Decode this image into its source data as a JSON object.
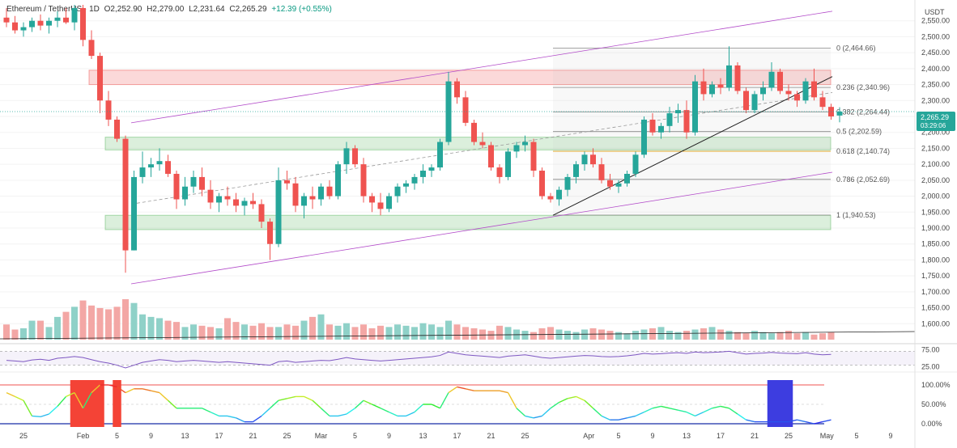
{
  "header": {
    "symbol": "Ethereum / TetherUS · 1D",
    "open": "O2,252.90",
    "high": "H2,279.00",
    "low": "L2,231.64",
    "close": "C2,265.29",
    "change": "+12.39 (+0.55%)"
  },
  "price_axis": {
    "currency": "USDT",
    "last_price": "2,265.29",
    "countdown": "03:29:06"
  },
  "colors": {
    "up": "#26a69a",
    "down": "#ef5350",
    "up_vol": "#8fd1c8",
    "down_vol": "#f3a7a5",
    "channel": "#b24ac9",
    "fib_label": "#555555",
    "fib_gold": "#e0a21a"
  },
  "chart_data": [
    {
      "type": "candlestick",
      "title": "Ethereum / TetherUS · 1D",
      "x": [
        "Jan 23",
        "Jan 24",
        "Jan 25",
        "Jan 26",
        "Jan 27",
        "Jan 28",
        "Jan 29",
        "Jan 30",
        "Jan 31",
        "Feb 1",
        "Feb 2",
        "Feb 3",
        "Feb 4",
        "Feb 5",
        "Feb 6",
        "Feb 7",
        "Feb 8",
        "Feb 9",
        "Feb 10",
        "Feb 11",
        "Feb 12",
        "Feb 13",
        "Feb 14",
        "Feb 15",
        "Feb 16",
        "Feb 17",
        "Feb 18",
        "Feb 19",
        "Feb 20",
        "Feb 21",
        "Feb 22",
        "Feb 23",
        "Feb 24",
        "Feb 25",
        "Feb 26",
        "Feb 27",
        "Feb 28",
        "Mar 1",
        "Mar 2",
        "Mar 3",
        "Mar 4",
        "Mar 5",
        "Mar 6",
        "Mar 7",
        "Mar 8",
        "Mar 9",
        "Mar 10",
        "Mar 11",
        "Mar 12",
        "Mar 13",
        "Mar 14",
        "Mar 15",
        "Mar 16",
        "Mar 17",
        "Mar 18",
        "Mar 19",
        "Mar 20",
        "Mar 21",
        "Mar 22",
        "Mar 23",
        "Mar 24",
        "Mar 25",
        "Mar 26",
        "Mar 27",
        "Mar 28",
        "Mar 29",
        "Mar 30",
        "Mar 31",
        "Apr 1",
        "Apr 2",
        "Apr 3",
        "Apr 4",
        "Apr 5",
        "Apr 6",
        "Apr 7",
        "Apr 8",
        "Apr 9",
        "Apr 10",
        "Apr 11",
        "Apr 12",
        "Apr 13",
        "Apr 14",
        "Apr 15",
        "Apr 16",
        "Apr 17",
        "Apr 18",
        "Apr 19",
        "Apr 20",
        "Apr 21",
        "Apr 22",
        "Apr 23",
        "Apr 24",
        "Apr 25",
        "Apr 26",
        "Apr 27",
        "Apr 28",
        "Apr 29",
        "Apr 30"
      ],
      "ohlc": [
        [
          2560,
          2590,
          2530,
          2545
        ],
        [
          2545,
          2565,
          2510,
          2520
        ],
        [
          2520,
          2545,
          2500,
          2530
        ],
        [
          2530,
          2560,
          2515,
          2550
        ],
        [
          2550,
          2570,
          2520,
          2535
        ],
        [
          2535,
          2560,
          2510,
          2550
        ],
        [
          2550,
          2580,
          2530,
          2560
        ],
        [
          2560,
          2590,
          2540,
          2545
        ],
        [
          2545,
          2600,
          2520,
          2590
        ],
        [
          2590,
          2600,
          2470,
          2490
        ],
        [
          2490,
          2520,
          2430,
          2440
        ],
        [
          2440,
          2450,
          2260,
          2300
        ],
        [
          2300,
          2330,
          2220,
          2240
        ],
        [
          2240,
          2250,
          2170,
          2180
        ],
        [
          2180,
          2190,
          1760,
          1830
        ],
        [
          1830,
          2080,
          1830,
          2060
        ],
        [
          2060,
          2140,
          2040,
          2090
        ],
        [
          2090,
          2120,
          2060,
          2100
        ],
        [
          2100,
          2150,
          2080,
          2110
        ],
        [
          2110,
          2130,
          2060,
          2070
        ],
        [
          2070,
          2080,
          1960,
          1990
        ],
        [
          1990,
          2060,
          1970,
          2030
        ],
        [
          2030,
          2080,
          2010,
          2060
        ],
        [
          2060,
          2090,
          2000,
          2020
        ],
        [
          2020,
          2050,
          1960,
          1980
        ],
        [
          1980,
          2010,
          1950,
          2000
        ],
        [
          2000,
          2030,
          1970,
          1990
        ],
        [
          1990,
          2010,
          1950,
          1970
        ],
        [
          1970,
          1995,
          1940,
          1985
        ],
        [
          1985,
          2010,
          1960,
          1975
        ],
        [
          1975,
          1990,
          1900,
          1920
        ],
        [
          1920,
          1930,
          1800,
          1850
        ],
        [
          1850,
          2090,
          1840,
          2050
        ],
        [
          2050,
          2080,
          2020,
          2040
        ],
        [
          2040,
          2060,
          1950,
          1970
        ],
        [
          1970,
          2010,
          1930,
          2000
        ],
        [
          2000,
          2030,
          1960,
          1990
        ],
        [
          1990,
          2040,
          1970,
          2030
        ],
        [
          2030,
          2050,
          1990,
          2000
        ],
        [
          2000,
          2110,
          1990,
          2100
        ],
        [
          2100,
          2170,
          2070,
          2150
        ],
        [
          2150,
          2160,
          2090,
          2100
        ],
        [
          2100,
          2120,
          1980,
          2000
        ],
        [
          2000,
          2010,
          1950,
          1980
        ],
        [
          1980,
          2010,
          1940,
          1960
        ],
        [
          1960,
          2010,
          1950,
          2000
        ],
        [
          2000,
          2040,
          1980,
          2030
        ],
        [
          2030,
          2050,
          2010,
          2040
        ],
        [
          2040,
          2070,
          2020,
          2060
        ],
        [
          2060,
          2100,
          2040,
          2080
        ],
        [
          2080,
          2100,
          2060,
          2090
        ],
        [
          2090,
          2180,
          2080,
          2170
        ],
        [
          2170,
          2390,
          2160,
          2360
        ],
        [
          2360,
          2370,
          2290,
          2310
        ],
        [
          2310,
          2330,
          2220,
          2230
        ],
        [
          2230,
          2240,
          2160,
          2170
        ],
        [
          2170,
          2200,
          2150,
          2160
        ],
        [
          2160,
          2170,
          2080,
          2090
        ],
        [
          2090,
          2100,
          2040,
          2060
        ],
        [
          2060,
          2150,
          2050,
          2140
        ],
        [
          2140,
          2170,
          2120,
          2160
        ],
        [
          2160,
          2190,
          2140,
          2170
        ],
        [
          2170,
          2180,
          2060,
          2080
        ],
        [
          2080,
          2090,
          1990,
          2000
        ],
        [
          2000,
          2010,
          1980,
          1990
        ],
        [
          1990,
          2030,
          1970,
          2020
        ],
        [
          2020,
          2070,
          2000,
          2060
        ],
        [
          2060,
          2110,
          2040,
          2100
        ],
        [
          2100,
          2140,
          2080,
          2130
        ],
        [
          2130,
          2150,
          2090,
          2100
        ],
        [
          2100,
          2120,
          2040,
          2050
        ],
        [
          2050,
          2070,
          2020,
          2030
        ],
        [
          2030,
          2050,
          2010,
          2040
        ],
        [
          2040,
          2080,
          2030,
          2070
        ],
        [
          2070,
          2140,
          2060,
          2130
        ],
        [
          2130,
          2250,
          2120,
          2240
        ],
        [
          2240,
          2260,
          2190,
          2200
        ],
        [
          2200,
          2230,
          2180,
          2220
        ],
        [
          2220,
          2280,
          2200,
          2260
        ],
        [
          2260,
          2290,
          2230,
          2270
        ],
        [
          2270,
          2300,
          2180,
          2200
        ],
        [
          2200,
          2380,
          2190,
          2360
        ],
        [
          2360,
          2400,
          2300,
          2320
        ],
        [
          2320,
          2360,
          2310,
          2350
        ],
        [
          2350,
          2370,
          2320,
          2340
        ],
        [
          2340,
          2470,
          2330,
          2410
        ],
        [
          2410,
          2420,
          2320,
          2330
        ],
        [
          2330,
          2340,
          2260,
          2270
        ],
        [
          2270,
          2330,
          2260,
          2320
        ],
        [
          2320,
          2360,
          2300,
          2340
        ],
        [
          2340,
          2420,
          2330,
          2390
        ],
        [
          2390,
          2400,
          2320,
          2330
        ],
        [
          2330,
          2350,
          2300,
          2320
        ],
        [
          2320,
          2330,
          2280,
          2300
        ],
        [
          2300,
          2370,
          2290,
          2360
        ],
        [
          2360,
          2400,
          2300,
          2310
        ],
        [
          2310,
          2330,
          2270,
          2280
        ],
        [
          2280,
          2290,
          2240,
          2250
        ],
        [
          2252.9,
          2279,
          2231.64,
          2265.29
        ]
      ],
      "volume": [
        12,
        8,
        9,
        15,
        15,
        10,
        18,
        22,
        26,
        31,
        27,
        25,
        24,
        26,
        32,
        29,
        20,
        18,
        17,
        15,
        14,
        10,
        12,
        11,
        10,
        9,
        17,
        14,
        12,
        11,
        13,
        10,
        10,
        12,
        11,
        15,
        18,
        20,
        12,
        11,
        13,
        10,
        12,
        9,
        11,
        10,
        12,
        11,
        10,
        13,
        12,
        10,
        15,
        12,
        10,
        9,
        8,
        7,
        11,
        10,
        8,
        7,
        6,
        9,
        10,
        8,
        7,
        6,
        8,
        9,
        8,
        7,
        6,
        5,
        7,
        8,
        9,
        10,
        7,
        6,
        7,
        8,
        9,
        10,
        8,
        7,
        6,
        5,
        7,
        6,
        5,
        6,
        7,
        5,
        6,
        4,
        5,
        6
      ],
      "ylim": [
        1550,
        2600
      ],
      "y_ticks": [
        "1,600.00",
        "1,650.00",
        "1,700.00",
        "1,750.00",
        "1,800.00",
        "1,850.00",
        "1,900.00",
        "1,950.00",
        "2,000.00",
        "2,050.00",
        "2,100.00",
        "2,150.00",
        "2,200.00",
        "2,250.00",
        "2,300.00",
        "2,350.00",
        "2,400.00",
        "2,450.00",
        "2,500.00",
        "2,550.00"
      ],
      "fib_levels": [
        {
          "label": "0 (2,464.66)",
          "value": 2464.66
        },
        {
          "label": "0.236 (2,340.96)",
          "value": 2340.96
        },
        {
          "label": "0.382 (2,264.44)",
          "value": 2264.44
        },
        {
          "label": "0.5 (2,202.59)",
          "value": 2202.59
        },
        {
          "label": "0.618 (2,140.74)",
          "value": 2140.74
        },
        {
          "label": "0.786 (2,052.69)",
          "value": 2052.69
        },
        {
          "label": "1 (1,940.53)",
          "value": 1940.53
        }
      ],
      "zones": [
        {
          "type": "resistance",
          "from": 2350,
          "to": 2395
        },
        {
          "type": "support",
          "from": 2145,
          "to": 2185
        },
        {
          "type": "support",
          "from": 1895,
          "to": 1940
        }
      ]
    },
    {
      "type": "line",
      "title": "",
      "y_ticks": [
        "75.00",
        "25.00"
      ],
      "ylim": [
        15,
        85
      ],
      "series": [
        {
          "values": [
            44,
            42,
            40,
            45,
            47,
            44,
            50,
            52,
            55,
            52,
            46,
            40,
            36,
            30,
            22,
            30,
            38,
            42,
            46,
            44,
            40,
            42,
            44,
            42,
            40,
            38,
            40,
            38,
            36,
            34,
            32,
            30,
            40,
            42,
            38,
            40,
            42,
            44,
            43,
            47,
            52,
            48,
            46,
            44,
            42,
            44,
            46,
            48,
            50,
            52,
            54,
            58,
            68,
            64,
            60,
            58,
            56,
            54,
            52,
            56,
            58,
            60,
            56,
            52,
            50,
            52,
            54,
            56,
            58,
            57,
            55,
            54,
            55,
            57,
            60,
            64,
            62,
            63,
            65,
            66,
            64,
            68,
            66,
            67,
            68,
            70,
            66,
            62,
            64,
            65,
            67,
            65,
            64,
            63,
            66,
            62,
            60,
            61
          ]
        }
      ]
    },
    {
      "type": "line",
      "title": "",
      "y_ticks": [
        "100.00%",
        "50.00%",
        "0.00%"
      ],
      "ylim": [
        0,
        100
      ],
      "series": [
        {
          "values": [
            80,
            70,
            60,
            20,
            18,
            25,
            45,
            70,
            80,
            40,
            80,
            100,
            100,
            95,
            80,
            90,
            90,
            85,
            80,
            60,
            40,
            40,
            40,
            40,
            30,
            20,
            20,
            15,
            5,
            5,
            20,
            40,
            60,
            65,
            70,
            70,
            60,
            40,
            20,
            20,
            25,
            40,
            60,
            50,
            40,
            30,
            20,
            20,
            30,
            50,
            50,
            40,
            80,
            95,
            90,
            85,
            85,
            85,
            85,
            80,
            40,
            20,
            15,
            20,
            40,
            55,
            65,
            70,
            60,
            40,
            20,
            10,
            10,
            15,
            20,
            30,
            40,
            45,
            40,
            35,
            30,
            20,
            30,
            40,
            45,
            40,
            25,
            10,
            5,
            5,
            5,
            5,
            5,
            10,
            5,
            0,
            5,
            10
          ]
        }
      ]
    }
  ],
  "x_axis": {
    "labels": [
      "25",
      "Feb",
      "5",
      "9",
      "13",
      "17",
      "21",
      "25",
      "Mar",
      "5",
      "9",
      "13",
      "17",
      "21",
      "25",
      "Apr",
      "5",
      "9",
      "13",
      "17",
      "21",
      "25",
      "May",
      "5",
      "9"
    ]
  }
}
